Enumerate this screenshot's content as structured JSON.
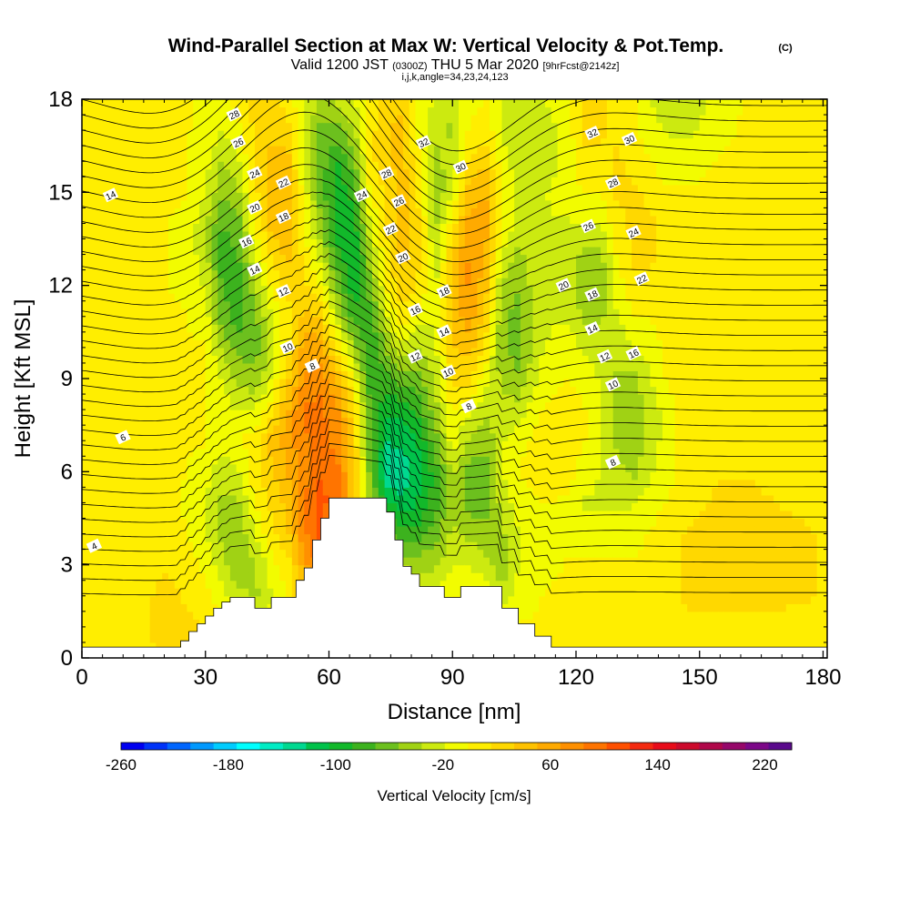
{
  "title": {
    "main": "Wind-Parallel Section at Max W: Vertical Velocity & Pot.Temp.",
    "copyright": "(C)",
    "valid_prefix": "Valid 1200 JST",
    "valid_utc": "(0300Z)",
    "valid_date": "THU 5 Mar 2020",
    "forecast": "[9hrFcst@2142z]",
    "indices": "i,j,k,angle=34,23,24,123"
  },
  "chart_data": {
    "type": "heatmap",
    "xlabel": "Distance [nm]",
    "ylabel": "Height [Kft MSL]",
    "xlim": [
      0,
      181
    ],
    "ylim": [
      0,
      18
    ],
    "x_ticks": [
      0,
      30,
      60,
      90,
      120,
      150,
      180
    ],
    "y_ticks": [
      0,
      3,
      6,
      9,
      12,
      15,
      18
    ],
    "grid": false,
    "colorbar": {
      "label": "Vertical Velocity [cm/s]",
      "placement": "bottom",
      "tick_labels": [
        "-260",
        "-180",
        "-100",
        "-20",
        "60",
        "140",
        "220"
      ],
      "tick_values": [
        -260,
        -180,
        -100,
        -20,
        60,
        140,
        220
      ],
      "range": [
        -260,
        240
      ],
      "colors": [
        "#0000f0",
        "#0033f8",
        "#0066ff",
        "#0099ff",
        "#00ccff",
        "#00ffff",
        "#00ecc4",
        "#00d890",
        "#00c24a",
        "#12b82a",
        "#3cb21e",
        "#6cc01e",
        "#a0d214",
        "#ccea10",
        "#f2fc00",
        "#ffee00",
        "#ffd800",
        "#ffc200",
        "#ffaa00",
        "#ff9000",
        "#ff7400",
        "#ff5000",
        "#f42a10",
        "#e80c1a",
        "#cc0a2c",
        "#b0084a",
        "#96086a",
        "#7c0888",
        "#5a0a8c"
      ]
    },
    "vertical_velocity_columns": [
      {
        "x": 0,
        "w": [
          0,
          0,
          0,
          0,
          0,
          0,
          0,
          0,
          0,
          0,
          0,
          0,
          0,
          0,
          0,
          0,
          0,
          0,
          0
        ]
      },
      {
        "x": 10,
        "w": [
          10,
          10,
          5,
          5,
          5,
          0,
          0,
          0,
          0,
          0,
          0,
          0,
          0,
          0,
          0,
          0,
          0,
          0,
          0
        ]
      },
      {
        "x": 20,
        "w": [
          15,
          20,
          20,
          15,
          10,
          10,
          0,
          0,
          0,
          0,
          0,
          0,
          0,
          0,
          0,
          0,
          0,
          0,
          0
        ]
      },
      {
        "x": 25,
        "w": [
          20,
          20,
          15,
          10,
          0,
          -5,
          0,
          0,
          0,
          0,
          0,
          0,
          -5,
          -5,
          -5,
          0,
          0,
          0,
          0
        ]
      },
      {
        "x": 30,
        "w": [
          20,
          15,
          5,
          -5,
          -20,
          -20,
          -10,
          0,
          0,
          0,
          0,
          -10,
          -20,
          -30,
          -30,
          -20,
          -10,
          -5,
          -5
        ]
      },
      {
        "x": 34,
        "w": [
          20,
          10,
          -10,
          -30,
          -40,
          -40,
          -30,
          -10,
          -10,
          -20,
          -40,
          -60,
          -70,
          -80,
          -70,
          -50,
          -40,
          -20,
          -10
        ]
      },
      {
        "x": 38,
        "w": [
          20,
          0,
          -30,
          -50,
          -50,
          -40,
          -20,
          -5,
          -20,
          -40,
          -60,
          -80,
          -80,
          -70,
          -60,
          -40,
          -20,
          -5,
          5
        ]
      },
      {
        "x": 42,
        "w": [
          0,
          -20,
          -40,
          -40,
          -20,
          0,
          10,
          10,
          -20,
          -50,
          -60,
          -60,
          -40,
          -20,
          0,
          10,
          20,
          20,
          20
        ]
      },
      {
        "x": 46,
        "w": [
          0,
          -10,
          -20,
          -10,
          10,
          20,
          30,
          40,
          10,
          -20,
          -30,
          -20,
          0,
          20,
          40,
          40,
          40,
          30,
          20
        ]
      },
      {
        "x": 50,
        "w": [
          0,
          0,
          0,
          10,
          30,
          40,
          50,
          60,
          50,
          30,
          10,
          10,
          20,
          40,
          50,
          50,
          40,
          20,
          10
        ]
      },
      {
        "x": 54,
        "w": [
          0,
          20,
          40,
          60,
          80,
          80,
          80,
          80,
          90,
          70,
          60,
          40,
          20,
          10,
          0,
          -10,
          -20,
          -20,
          -20
        ]
      },
      {
        "x": 58,
        "w": [
          0,
          60,
          80,
          100,
          110,
          110,
          100,
          90,
          90,
          80,
          60,
          30,
          0,
          -30,
          -50,
          -60,
          -60,
          -60,
          -40
        ]
      },
      {
        "x": 62,
        "w": [
          0,
          0,
          0,
          0,
          0,
          90,
          90,
          80,
          70,
          50,
          10,
          -30,
          -60,
          -80,
          -100,
          -100,
          -90,
          -60,
          -30
        ]
      },
      {
        "x": 66,
        "w": [
          0,
          0,
          0,
          0,
          0,
          40,
          40,
          30,
          20,
          0,
          -40,
          -80,
          -100,
          -110,
          -100,
          -80,
          -60,
          -40,
          -20
        ]
      },
      {
        "x": 70,
        "w": [
          0,
          0,
          0,
          0,
          0,
          -40,
          -60,
          -60,
          -70,
          -80,
          -90,
          -80,
          -60,
          -40,
          -20,
          0,
          10,
          10,
          10
        ]
      },
      {
        "x": 74,
        "w": [
          0,
          0,
          0,
          0,
          -60,
          -100,
          -140,
          -120,
          -100,
          -80,
          -50,
          -20,
          0,
          10,
          20,
          20,
          30,
          30,
          20
        ]
      },
      {
        "x": 78,
        "w": [
          0,
          0,
          0,
          -40,
          -80,
          -120,
          -130,
          -120,
          -100,
          -60,
          -20,
          10,
          30,
          40,
          40,
          40,
          40,
          40,
          30
        ]
      },
      {
        "x": 82,
        "w": [
          0,
          0,
          -20,
          -40,
          -80,
          -100,
          -110,
          -100,
          -80,
          -60,
          -40,
          -10,
          10,
          20,
          20,
          10,
          0,
          -10,
          -10
        ]
      },
      {
        "x": 86,
        "w": [
          0,
          0,
          -10,
          -40,
          -60,
          -80,
          -80,
          -60,
          -40,
          -30,
          -20,
          -20,
          -20,
          -30,
          -40,
          -50,
          -40,
          -30,
          -20
        ]
      },
      {
        "x": 90,
        "w": [
          0,
          0,
          0,
          -20,
          -30,
          -40,
          -30,
          -10,
          0,
          20,
          30,
          40,
          40,
          30,
          10,
          -20,
          -30,
          -40,
          -30
        ]
      },
      {
        "x": 94,
        "w": [
          0,
          0,
          0,
          -20,
          -40,
          -60,
          -60,
          -40,
          -10,
          20,
          40,
          60,
          70,
          70,
          60,
          40,
          20,
          0,
          -10
        ]
      },
      {
        "x": 98,
        "w": [
          0,
          0,
          0,
          -30,
          -50,
          -60,
          -60,
          -50,
          -30,
          -10,
          10,
          30,
          40,
          50,
          60,
          50,
          30,
          10,
          0
        ]
      },
      {
        "x": 102,
        "w": [
          0,
          0,
          -30,
          -50,
          -40,
          -30,
          -20,
          -20,
          -30,
          -40,
          -50,
          -50,
          -40,
          -20,
          0,
          0,
          -10,
          -20,
          -20
        ]
      },
      {
        "x": 106,
        "w": [
          0,
          0,
          -10,
          -20,
          -20,
          -10,
          0,
          -10,
          -30,
          -50,
          -60,
          -60,
          -50,
          -40,
          -20,
          -20,
          -30,
          -30,
          -20
        ]
      },
      {
        "x": 112,
        "w": [
          0,
          0,
          0,
          -10,
          -10,
          0,
          10,
          10,
          0,
          -10,
          -20,
          -20,
          -20,
          -20,
          -20,
          -20,
          -30,
          -30,
          -20
        ]
      },
      {
        "x": 118,
        "w": [
          0,
          10,
          5,
          0,
          -5,
          -5,
          5,
          10,
          10,
          0,
          -10,
          -20,
          -30,
          -30,
          -20,
          -10,
          -10,
          -10,
          -5
        ]
      },
      {
        "x": 122,
        "w": [
          0,
          10,
          10,
          0,
          -10,
          -20,
          -10,
          0,
          0,
          -10,
          -20,
          -40,
          -50,
          -40,
          -20,
          0,
          10,
          20,
          20
        ]
      },
      {
        "x": 126,
        "w": [
          0,
          10,
          10,
          0,
          -10,
          -20,
          -20,
          -20,
          -20,
          -20,
          -30,
          -40,
          -50,
          -40,
          -20,
          0,
          10,
          20,
          20
        ]
      },
      {
        "x": 130,
        "w": [
          0,
          10,
          10,
          0,
          -10,
          -20,
          -30,
          -40,
          -40,
          -40,
          -30,
          -20,
          -10,
          0,
          10,
          20,
          20,
          10,
          0
        ]
      },
      {
        "x": 134,
        "w": [
          0,
          10,
          10,
          0,
          -10,
          -20,
          -40,
          -50,
          -50,
          -40,
          -20,
          0,
          10,
          20,
          20,
          20,
          10,
          0,
          0
        ]
      },
      {
        "x": 138,
        "w": [
          0,
          10,
          10,
          10,
          0,
          -10,
          -20,
          -30,
          -30,
          -20,
          -10,
          0,
          10,
          20,
          20,
          10,
          0,
          -10,
          -20
        ]
      },
      {
        "x": 142,
        "w": [
          0,
          10,
          10,
          10,
          10,
          0,
          -10,
          -10,
          -10,
          0,
          0,
          10,
          10,
          10,
          10,
          0,
          -10,
          -20,
          -30
        ]
      },
      {
        "x": 148,
        "w": [
          0,
          10,
          20,
          20,
          20,
          10,
          10,
          10,
          10,
          10,
          10,
          10,
          10,
          10,
          5,
          0,
          -10,
          -20,
          -30
        ]
      },
      {
        "x": 155,
        "w": [
          0,
          10,
          20,
          20,
          20,
          20,
          15,
          10,
          10,
          10,
          10,
          10,
          10,
          10,
          10,
          5,
          0,
          -10,
          -10
        ]
      },
      {
        "x": 162,
        "w": [
          0,
          10,
          20,
          20,
          20,
          20,
          15,
          10,
          10,
          10,
          10,
          10,
          10,
          10,
          10,
          10,
          10,
          5,
          0
        ]
      },
      {
        "x": 170,
        "w": [
          0,
          10,
          20,
          20,
          20,
          15,
          10,
          10,
          10,
          10,
          10,
          10,
          10,
          10,
          10,
          10,
          10,
          10,
          10
        ]
      },
      {
        "x": 181,
        "w": [
          0,
          10,
          15,
          15,
          15,
          10,
          10,
          10,
          10,
          10,
          10,
          10,
          10,
          10,
          10,
          10,
          10,
          10,
          10
        ]
      }
    ],
    "terrain_steps": [
      [
        0,
        0.35
      ],
      [
        22,
        0.35
      ],
      [
        24,
        0.55
      ],
      [
        26,
        0.85
      ],
      [
        28,
        1.1
      ],
      [
        30,
        1.35
      ],
      [
        32,
        1.6
      ],
      [
        34,
        1.8
      ],
      [
        36,
        1.95
      ],
      [
        40,
        1.95
      ],
      [
        42,
        1.6
      ],
      [
        46,
        1.95
      ],
      [
        52,
        2.5
      ],
      [
        54,
        2.9
      ],
      [
        56,
        3.8
      ],
      [
        58,
        4.5
      ],
      [
        60,
        5.15
      ],
      [
        70,
        5.15
      ],
      [
        74,
        4.7
      ],
      [
        76,
        3.8
      ],
      [
        78,
        2.95
      ],
      [
        80,
        2.7
      ],
      [
        82,
        2.3
      ],
      [
        88,
        1.95
      ],
      [
        92,
        2.3
      ],
      [
        100,
        2.3
      ],
      [
        102,
        1.6
      ],
      [
        106,
        1.1
      ],
      [
        110,
        0.7
      ],
      [
        114,
        0.35
      ],
      [
        181,
        0.35
      ]
    ],
    "theta_contour_labels": [
      "4",
      "6",
      "8",
      "10",
      "12",
      "14",
      "16",
      "18",
      "20",
      "22",
      "24",
      "26",
      "28",
      "30",
      "32"
    ],
    "theta_labels_on_plot": [
      {
        "x": 3,
        "y": 3.6,
        "t": "4"
      },
      {
        "x": 10,
        "y": 7.1,
        "t": "6"
      },
      {
        "x": 56,
        "y": 9.4,
        "t": "8"
      },
      {
        "x": 94,
        "y": 8.1,
        "t": "8"
      },
      {
        "x": 129,
        "y": 6.3,
        "t": "8"
      },
      {
        "x": 50,
        "y": 10,
        "t": "10"
      },
      {
        "x": 89,
        "y": 9.2,
        "t": "10"
      },
      {
        "x": 129,
        "y": 8.8,
        "t": "10"
      },
      {
        "x": 49,
        "y": 11.8,
        "t": "12"
      },
      {
        "x": 81,
        "y": 9.7,
        "t": "12"
      },
      {
        "x": 127,
        "y": 9.7,
        "t": "12"
      },
      {
        "x": 42,
        "y": 12.5,
        "t": "14"
      },
      {
        "x": 88,
        "y": 10.5,
        "t": "14"
      },
      {
        "x": 124,
        "y": 10.6,
        "t": "14"
      },
      {
        "x": 7,
        "y": 14.9,
        "t": "14"
      },
      {
        "x": 40,
        "y": 13.4,
        "t": "16"
      },
      {
        "x": 81,
        "y": 11.2,
        "t": "16"
      },
      {
        "x": 134,
        "y": 9.8,
        "t": "16"
      },
      {
        "x": 49,
        "y": 14.2,
        "t": "18"
      },
      {
        "x": 88,
        "y": 11.8,
        "t": "18"
      },
      {
        "x": 124,
        "y": 11.7,
        "t": "18"
      },
      {
        "x": 42,
        "y": 14.5,
        "t": "20"
      },
      {
        "x": 78,
        "y": 12.9,
        "t": "20"
      },
      {
        "x": 117,
        "y": 12.0,
        "t": "20"
      },
      {
        "x": 49,
        "y": 15.3,
        "t": "22"
      },
      {
        "x": 75,
        "y": 13.8,
        "t": "22"
      },
      {
        "x": 136,
        "y": 12.2,
        "t": "22"
      },
      {
        "x": 42,
        "y": 15.6,
        "t": "24"
      },
      {
        "x": 68,
        "y": 14.9,
        "t": "24"
      },
      {
        "x": 134,
        "y": 13.7,
        "t": "24"
      },
      {
        "x": 38,
        "y": 16.6,
        "t": "26"
      },
      {
        "x": 77,
        "y": 14.7,
        "t": "26"
      },
      {
        "x": 123,
        "y": 13.9,
        "t": "26"
      },
      {
        "x": 37,
        "y": 17.5,
        "t": "28"
      },
      {
        "x": 74,
        "y": 15.6,
        "t": "28"
      },
      {
        "x": 129,
        "y": 15.3,
        "t": "28"
      },
      {
        "x": 92,
        "y": 15.8,
        "t": "30"
      },
      {
        "x": 133,
        "y": 16.7,
        "t": "30"
      },
      {
        "x": 83,
        "y": 16.6,
        "t": "32"
      },
      {
        "x": 124,
        "y": 16.9,
        "t": "32"
      }
    ]
  }
}
